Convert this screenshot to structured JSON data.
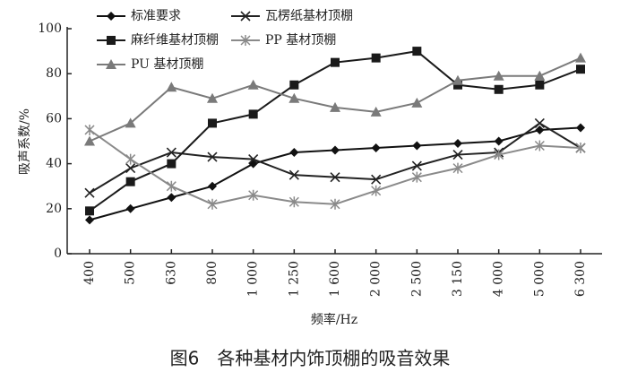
{
  "chart_data": {
    "type": "line",
    "caption": "图6　各种基材内饰顶棚的吸音效果",
    "x_label": "频率/Hz",
    "y_label": "吸声系数/%",
    "categories": [
      "400",
      "500",
      "630",
      "800",
      "1 000",
      "1 250",
      "1 600",
      "2 000",
      "2 500",
      "3 150",
      "4 000",
      "5 000",
      "6 300"
    ],
    "ylim": [
      0,
      100
    ],
    "yticks": [
      0,
      20,
      40,
      60,
      80,
      100
    ],
    "series": [
      {
        "name": "标准要求",
        "color": "#111111",
        "marker": "diamond",
        "values": [
          15,
          20,
          25,
          30,
          40,
          45,
          46,
          47,
          48,
          49,
          50,
          55,
          56
        ]
      },
      {
        "name": "瓦楞纸基材顶棚",
        "color": "#222222",
        "marker": "x",
        "values": [
          27,
          38,
          45,
          43,
          42,
          35,
          34,
          33,
          39,
          44,
          45,
          58,
          47
        ]
      },
      {
        "name": "麻纤维基材顶棚",
        "color": "#1a1a1a",
        "marker": "square",
        "values": [
          19,
          32,
          40,
          58,
          62,
          75,
          85,
          87,
          90,
          75,
          73,
          75,
          82
        ]
      },
      {
        "name": "PP 基材顶棚",
        "color": "#8a8a8a",
        "marker": "star",
        "values": [
          55,
          42,
          30,
          22,
          26,
          23,
          22,
          28,
          34,
          38,
          44,
          48,
          47
        ]
      },
      {
        "name": "PU 基材顶棚",
        "color": "#7a7a7a",
        "marker": "triangle",
        "values": [
          50,
          58,
          74,
          69,
          75,
          69,
          65,
          63,
          67,
          77,
          79,
          79,
          87
        ]
      }
    ]
  }
}
